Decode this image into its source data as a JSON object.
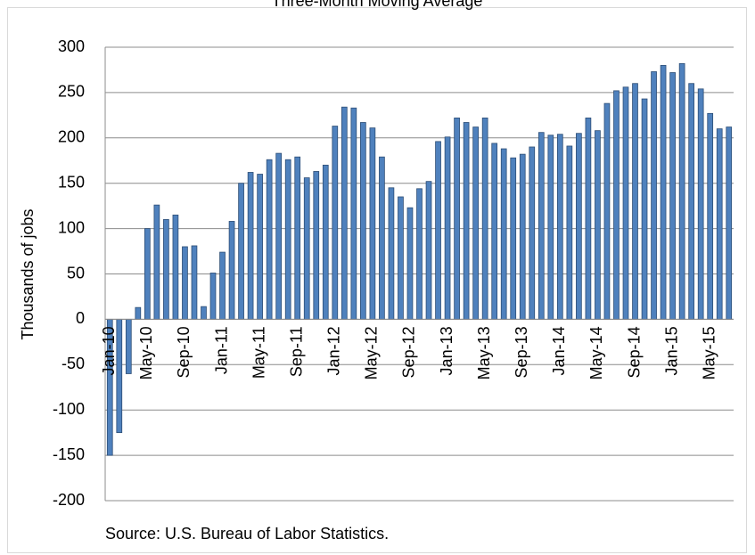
{
  "chart_data": {
    "type": "bar",
    "title": "Three-Month Moving Average",
    "ylabel": "Thousands of jobs",
    "note": "Source: U.S. Bureau of Labor Statistics.",
    "categories": [
      "Jan-10",
      null,
      null,
      null,
      "May-10",
      null,
      null,
      null,
      "Sep-10",
      null,
      null,
      null,
      "Jan-11",
      null,
      null,
      null,
      "May-11",
      null,
      null,
      null,
      "Sep-11",
      null,
      null,
      null,
      "Jan-12",
      null,
      null,
      null,
      "May-12",
      null,
      null,
      null,
      "Sep-12",
      null,
      null,
      null,
      "Jan-13",
      null,
      null,
      null,
      "May-13",
      null,
      null,
      null,
      "Sep-13",
      null,
      null,
      null,
      "Jan-14",
      null,
      null,
      null,
      "May-14",
      null,
      null,
      null,
      "Sep-14",
      null,
      null,
      null,
      "Jan-15",
      null,
      null,
      null,
      "May-15",
      null,
      null
    ],
    "values": [
      -150,
      -125,
      -60,
      13,
      100,
      126,
      110,
      115,
      80,
      81,
      14,
      51,
      74,
      108,
      150,
      162,
      160,
      176,
      183,
      176,
      179,
      156,
      163,
      170,
      213,
      234,
      233,
      217,
      211,
      179,
      145,
      135,
      123,
      144,
      152,
      196,
      201,
      222,
      217,
      212,
      222,
      194,
      188,
      178,
      182,
      190,
      206,
      203,
      204,
      191,
      205,
      222,
      208,
      238,
      252,
      256,
      260,
      243,
      273,
      280,
      272,
      282,
      260,
      254,
      227,
      210,
      212
    ],
    "color": "#4f81bd",
    "ylim": [
      -200,
      300
    ],
    "yticks": [
      -200,
      -150,
      -100,
      -50,
      0,
      50,
      100,
      150,
      200,
      250,
      300
    ],
    "grid": true
  }
}
